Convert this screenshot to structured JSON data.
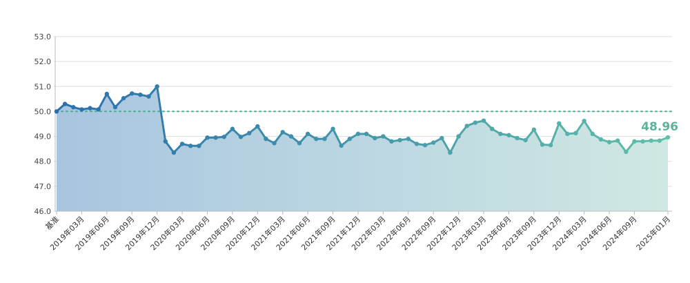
{
  "chart_data": {
    "type": "area",
    "title": "",
    "xlabel": "",
    "ylabel": "",
    "ylim": [
      46.0,
      53.0
    ],
    "yticks": [
      "53.0",
      "52.0",
      "51.0",
      "50.0",
      "49.0",
      "48.0",
      "47.0",
      "46.0"
    ],
    "baseline": 50.0,
    "grid": true,
    "x": [
      "基准",
      "2019年01月",
      "2019年02月",
      "2019年03月",
      "2019年04月",
      "2019年05月",
      "2019年06月",
      "2019年07月",
      "2019年08月",
      "2019年09月",
      "2019年10月",
      "2019年11月",
      "2019年12月",
      "2020年01月",
      "2020年02月",
      "2020年03月",
      "2020年04月",
      "2020年05月",
      "2020年06月",
      "2020年07月",
      "2020年08月",
      "2020年09月",
      "2020年10月",
      "2020年11月",
      "2020年12月",
      "2021年01月",
      "2021年02月",
      "2021年03月",
      "2021年04月",
      "2021年05月",
      "2021年06月",
      "2021年07月",
      "2021年08月",
      "2021年09月",
      "2021年10月",
      "2021年11月",
      "2021年12月",
      "2022年01月",
      "2022年02月",
      "2022年03月",
      "2022年04月",
      "2022年05月",
      "2022年06月",
      "2022年07月",
      "2022年08月",
      "2022年09月",
      "2022年10月",
      "2022年11月",
      "2022年12月",
      "2023年01月",
      "2023年02月",
      "2023年03月",
      "2023年04月",
      "2023年05月",
      "2023年06月",
      "2023年07月",
      "2023年08月",
      "2023年09月",
      "2023年10月",
      "2023年11月",
      "2023年12月",
      "2024年01月",
      "2024年02月",
      "2024年03月",
      "2024年04月",
      "2024年05月",
      "2024年06月",
      "2024年07月",
      "2024年08月",
      "2024年09月",
      "2024年10月",
      "2024年11月",
      "2024年12月",
      "2025年01月"
    ],
    "tick_labels": [
      "基准",
      "2019年03月",
      "2019年06月",
      "2019年09月",
      "2019年12月",
      "2020年03月",
      "2020年06月",
      "2020年09月",
      "2020年12月",
      "2021年03月",
      "2021年06月",
      "2021年09月",
      "2021年12月",
      "2022年03月",
      "2022年06月",
      "2022年09月",
      "2022年12月",
      "2023年03月",
      "2023年06月",
      "2023年09月",
      "2023年12月",
      "2024年03月",
      "2024年06月",
      "2024年09月",
      "2025年01月"
    ],
    "series": [
      {
        "values": [
          50.0,
          50.3,
          50.17,
          50.08,
          50.13,
          50.08,
          50.7,
          50.17,
          50.53,
          50.72,
          50.67,
          50.6,
          51.0,
          48.8,
          48.35,
          48.7,
          48.62,
          48.62,
          48.95,
          48.95,
          48.98,
          49.3,
          48.98,
          49.13,
          49.4,
          48.9,
          48.73,
          49.17,
          49.0,
          48.73,
          49.1,
          48.9,
          48.9,
          49.3,
          48.63,
          48.9,
          49.1,
          49.1,
          48.93,
          49.0,
          48.8,
          48.85,
          48.9,
          48.7,
          48.65,
          48.75,
          48.93,
          48.35,
          49.0,
          49.42,
          49.55,
          49.63,
          49.3,
          49.1,
          49.05,
          48.93,
          48.85,
          49.27,
          48.67,
          48.65,
          49.52,
          49.1,
          49.13,
          49.62,
          49.1,
          48.88,
          48.77,
          48.83,
          48.38,
          48.8,
          48.8,
          48.83,
          48.83,
          48.96
        ]
      }
    ],
    "last_value_label": "48.96",
    "colors": {
      "line_start": "#2a6fad",
      "line_end": "#5fbfa8",
      "fill_start": "#a8c5e0",
      "fill_end": "#cfe8e3",
      "baseline": "#4aaa8a",
      "grid": "#dddddd",
      "axis": "#bbbbbb",
      "last_label": "#5ab39a"
    }
  }
}
